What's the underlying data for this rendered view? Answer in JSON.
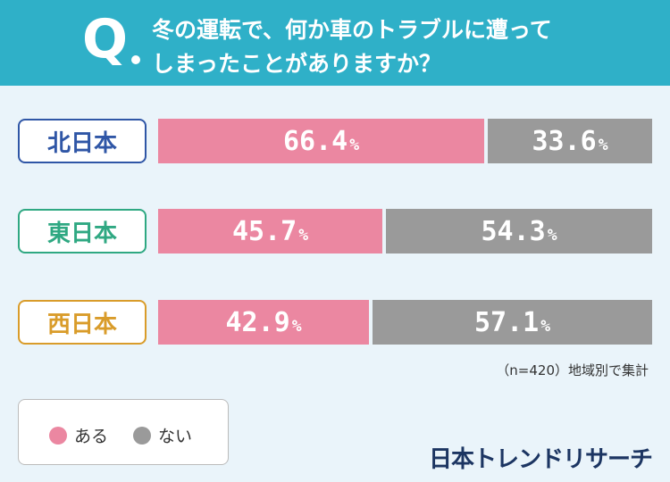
{
  "header": {
    "q_letter": "Q",
    "question_line1": "冬の運転で、何か車のトラブルに遭って",
    "question_line2": "しまったことがありますか？"
  },
  "chart_data": {
    "type": "bar",
    "stacked": true,
    "orientation": "horizontal",
    "categories": [
      "北日本",
      "東日本",
      "西日本"
    ],
    "series": [
      {
        "name": "ある",
        "values": [
          66.4,
          45.7,
          42.9
        ]
      },
      {
        "name": "ない",
        "values": [
          33.6,
          54.3,
          57.1
        ]
      }
    ],
    "xlim": [
      0,
      100
    ],
    "unit": "%",
    "colors": {
      "ある": "#eb87a1",
      "ない": "#9a9a9a"
    },
    "region_colors": [
      "#2f56a6",
      "#2fa882",
      "#d99c2a"
    ]
  },
  "note": "（n=420）地域別で集計",
  "legend": {
    "yes_label": "ある",
    "no_label": "ない"
  },
  "brand": "日本トレンドリサーチ"
}
